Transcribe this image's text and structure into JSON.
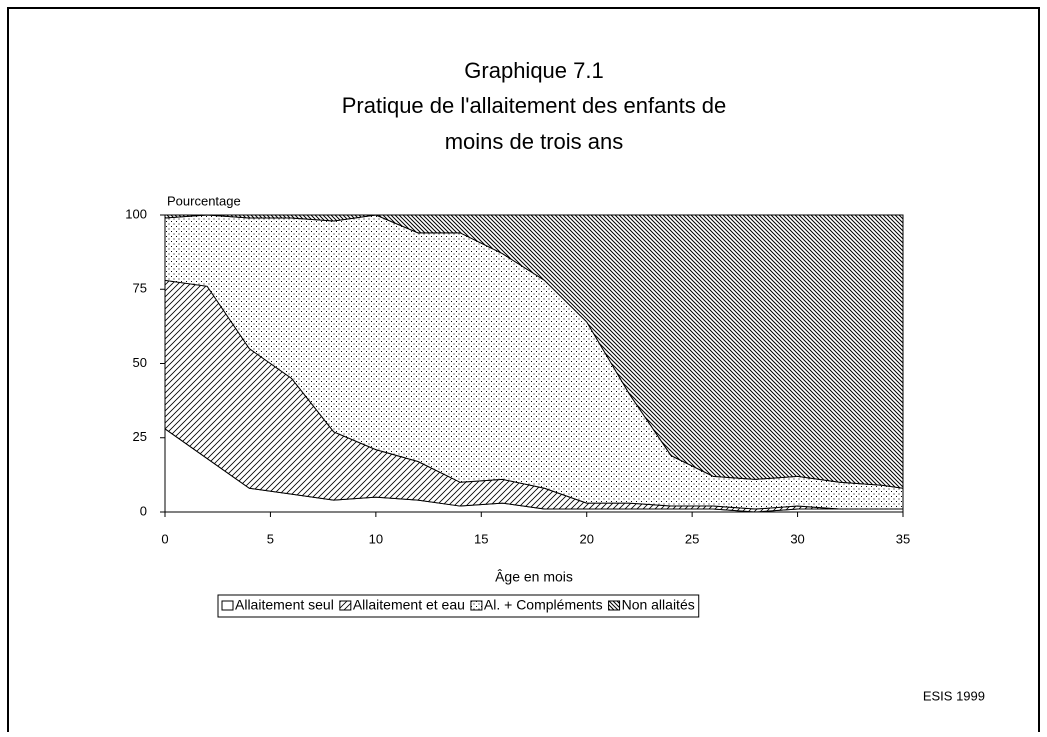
{
  "chart_data": {
    "type": "stacked_area",
    "title": "Graphique 7.1",
    "subtitle": [
      "Pratique de l'allaitement des enfants de",
      "moins de trois ans"
    ],
    "ylabel": "Pourcentage",
    "xlabel": "Âge en mois",
    "source": "ESIS 1999",
    "x": [
      0,
      2,
      4,
      6,
      8,
      10,
      12,
      14,
      16,
      18,
      20,
      22,
      24,
      26,
      28,
      30,
      32,
      34,
      35
    ],
    "series": [
      {
        "name": "Allaitement seul",
        "color": "#ffffff",
        "pattern": "none",
        "values": [
          28,
          18,
          8,
          6,
          4,
          5,
          4,
          2,
          3,
          1,
          1,
          1,
          1,
          1,
          0,
          1,
          1,
          1,
          1
        ]
      },
      {
        "name": "Allaitement et eau",
        "color": "#000000",
        "pattern": "diagonal",
        "values": [
          50,
          58,
          47,
          39,
          23,
          16,
          13,
          8,
          8,
          7,
          2,
          2,
          1,
          1,
          1,
          1,
          0,
          0,
          0
        ]
      },
      {
        "name": "Al. + Compléments",
        "color": "#000000",
        "pattern": "dots",
        "values": [
          21,
          24,
          44,
          54,
          71,
          79,
          77,
          84,
          76,
          70,
          61,
          37,
          17,
          10,
          10,
          10,
          9,
          8,
          7
        ]
      },
      {
        "name": "Non allaités",
        "color": "#000000",
        "pattern": "dense",
        "values": [
          1,
          0,
          1,
          1,
          2,
          0,
          6,
          6,
          13,
          22,
          36,
          60,
          81,
          88,
          89,
          88,
          90,
          91,
          92
        ]
      }
    ],
    "xlim": [
      0,
      35
    ],
    "xticks": [
      0,
      5,
      10,
      15,
      20,
      25,
      30,
      35
    ],
    "ylim": [
      0,
      100
    ],
    "yticks": [
      0,
      25,
      50,
      75,
      100
    ],
    "legend": "bottom"
  }
}
